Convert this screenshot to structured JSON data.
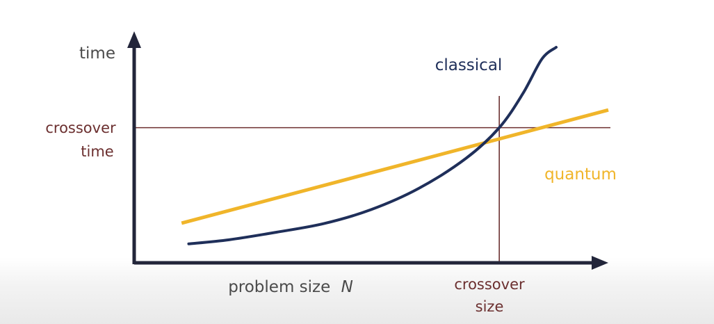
{
  "chart_data": {
    "type": "line",
    "title": "",
    "xlabel": "problem size",
    "xlabel_var": "N",
    "ylabel": "time",
    "xlim": [
      0,
      10
    ],
    "ylim": [
      0,
      10
    ],
    "grid": false,
    "legend": "direct labels on curves",
    "series": [
      {
        "name": "classical",
        "color": "#1f2f5a",
        "x": [
          1.15,
          2.0,
          3.0,
          4.0,
          5.0,
          6.0,
          7.0,
          7.7,
          8.2,
          8.6,
          8.9
        ],
        "y": [
          0.88,
          1.07,
          1.42,
          1.82,
          2.47,
          3.45,
          4.85,
          6.27,
          7.86,
          9.46,
          10.0
        ]
      },
      {
        "name": "quantum",
        "color": "#f0b52a",
        "x": [
          1.0,
          10.0
        ],
        "y": [
          1.84,
          7.09
        ]
      }
    ],
    "reference_lines": [
      {
        "orientation": "horizontal",
        "value": 6.27,
        "label_line1": "crossover",
        "label_line2": "time",
        "color": "#6b2f2f"
      },
      {
        "orientation": "vertical",
        "value": 7.7,
        "label_line1": "crossover",
        "label_line2": "size",
        "color": "#6b2f2f"
      }
    ],
    "colors": {
      "axis": "#22253a",
      "text": "#4a4a4a",
      "reference": "#6b2f2f"
    }
  }
}
